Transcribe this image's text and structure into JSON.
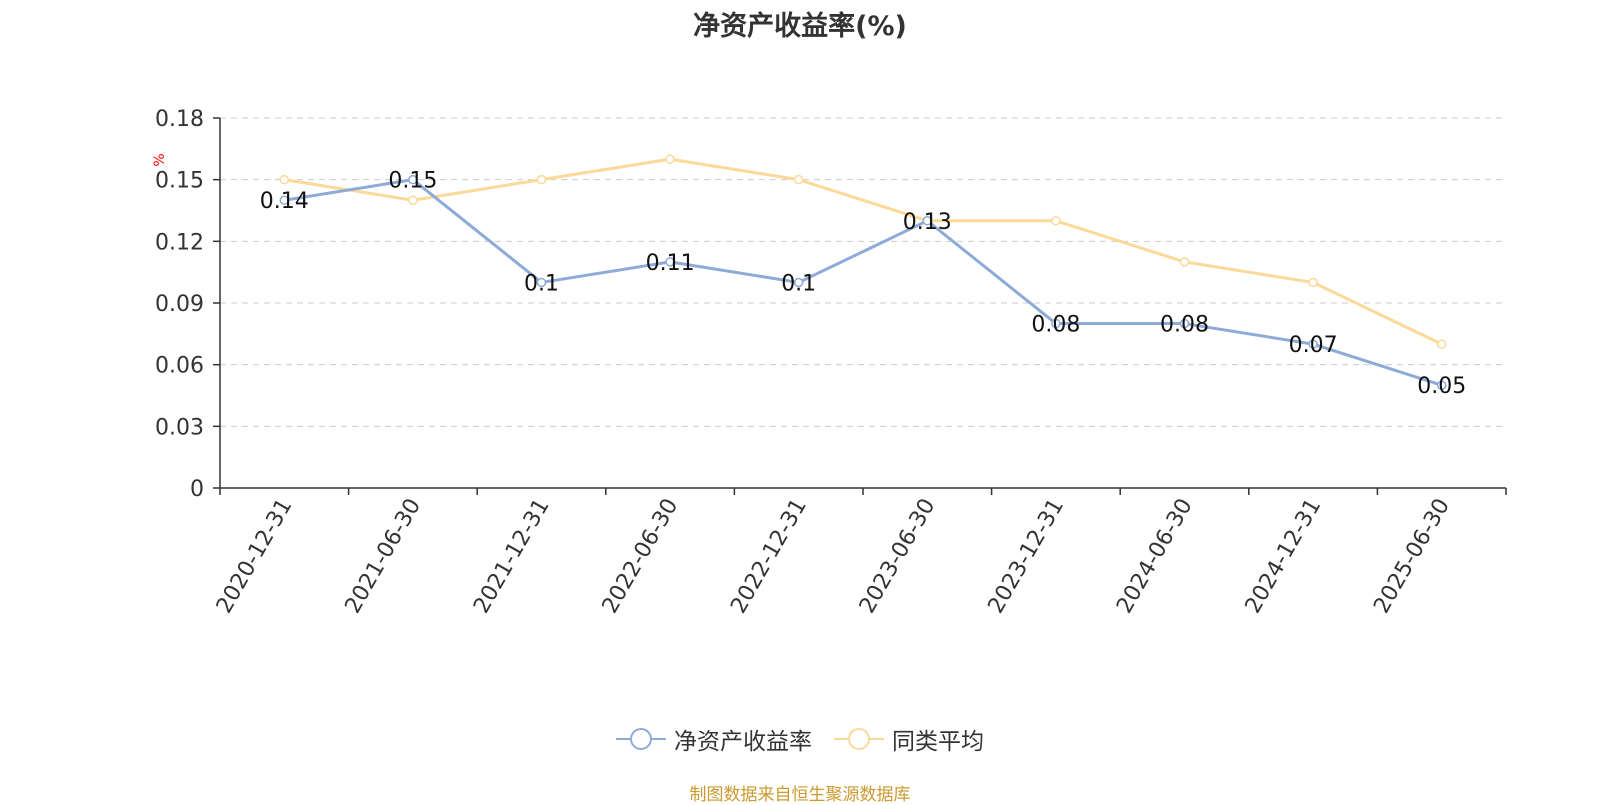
{
  "colors": {
    "series_0": "#8eaad8",
    "series_1": "#fbd999",
    "unit": "#ff0000",
    "source": "#cc9a2e"
  },
  "chart_data": {
    "type": "line",
    "title": "净资产收益率(%)",
    "ylabel": "%",
    "xlabel": "",
    "categories": [
      "2020-12-31",
      "2021-06-30",
      "2021-12-31",
      "2022-06-30",
      "2022-12-31",
      "2023-06-30",
      "2023-12-31",
      "2024-06-30",
      "2024-12-31",
      "2025-06-30"
    ],
    "ylim": [
      0,
      0.18
    ],
    "yticks": [
      "0",
      "0.03",
      "0.06",
      "0.09",
      "0.12",
      "0.15",
      "0.18"
    ],
    "grid": true,
    "legend_position": "bottom",
    "series": [
      {
        "name": "净资产收益率",
        "values": [
          0.14,
          0.15,
          0.1,
          0.11,
          0.1,
          0.13,
          0.08,
          0.08,
          0.07,
          0.05
        ],
        "labels": [
          "0.14",
          "0.15",
          "0.1",
          "0.11",
          "0.1",
          "0.13",
          "0.08",
          "0.08",
          "0.07",
          "0.05"
        ]
      },
      {
        "name": "同类平均",
        "values": [
          0.15,
          0.14,
          0.15,
          0.16,
          0.15,
          0.13,
          0.13,
          0.11,
          0.1,
          0.07
        ]
      }
    ]
  },
  "source_note": "制图数据来自恒生聚源数据库"
}
